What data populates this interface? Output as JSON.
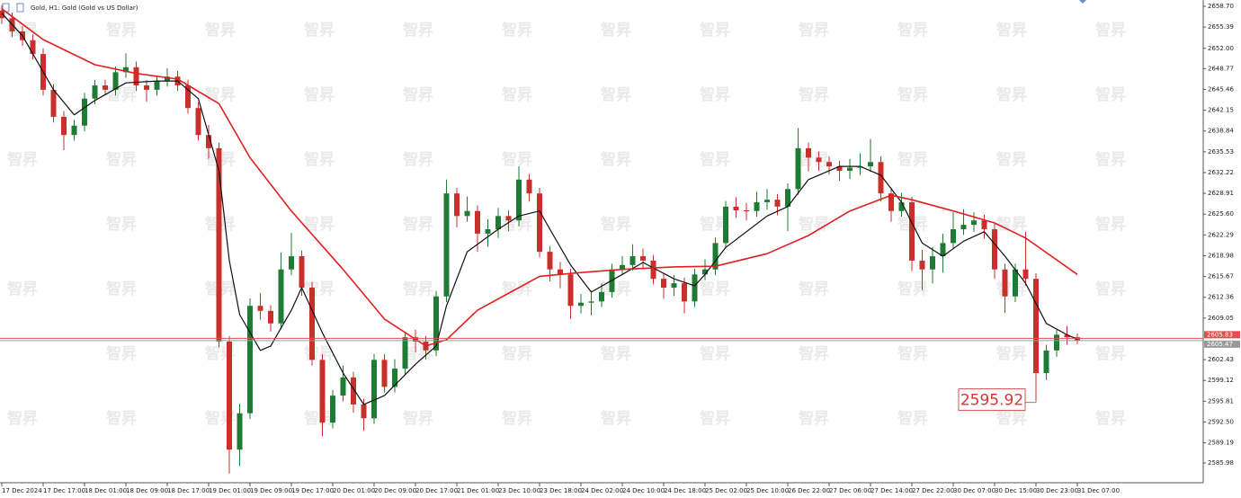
{
  "chart_data": {
    "type": "candlestick",
    "title": "Gold, H1: Gold (Gold vs US Dollar)",
    "watermark": "智昇",
    "up_color": "#1e7b34",
    "down_color": "#c9302c",
    "ylim": [
      2583.12,
      2659.7
    ],
    "yticks": [
      {
        "value": 2658.7,
        "label": "2658.70"
      },
      2655.39,
      {
        "value": 2652.0,
        "label": "2652.00"
      },
      2648.77,
      2645.46,
      2642.15,
      2638.84,
      2635.53,
      2632.22,
      2628.91,
      {
        "value": 2625.6,
        "label": "2625.60"
      },
      2622.29,
      2618.98,
      2615.67,
      2612.36,
      2609.05,
      2602.43,
      2599.12,
      2595.81,
      {
        "value": 2592.5,
        "label": "2592.50"
      },
      2589.19,
      2585.98
    ],
    "categories": [
      "17 Dec 2024",
      null,
      null,
      null,
      "17 Dec 17:00",
      null,
      null,
      null,
      "18 Dec 01:00",
      null,
      null,
      null,
      "18 Dec 09:00",
      null,
      null,
      null,
      "18 Dec 17:00",
      null,
      null,
      null,
      "19 Dec 01:00",
      null,
      null,
      null,
      "19 Dec 09:00",
      null,
      null,
      null,
      "19 Dec 17:00",
      null,
      null,
      null,
      "20 Dec 01:00",
      null,
      null,
      null,
      "20 Dec 09:00",
      null,
      null,
      null,
      "20 Dec 17:00",
      null,
      null,
      null,
      "21 Dec 01:00",
      null,
      null,
      null,
      "23 Dec 10:00",
      null,
      null,
      null,
      "23 Dec 18:00",
      null,
      null,
      null,
      "24 Dec 02:00",
      null,
      null,
      null,
      "24 Dec 10:00",
      null,
      null,
      null,
      "24 Dec 18:00",
      null,
      null,
      null,
      "25 Dec 02:00",
      null,
      null,
      null,
      "25 Dec 10:00",
      null,
      null,
      null,
      "26 Dec 22:00",
      null,
      null,
      null,
      "27 Dec 06:00",
      null,
      null,
      null,
      "27 Dec 14:00",
      null,
      null,
      null,
      "27 Dec 22:00",
      null,
      null,
      null,
      "30 Dec 07:00",
      null,
      null,
      null,
      "30 Dec 15:00",
      null,
      null,
      null,
      "30 Dec 23:00",
      null,
      null,
      null,
      "31 Dec 07:00"
    ],
    "open": [
      2658.0,
      2656.8,
      2654.7,
      2653.3,
      2651.1,
      2645.4,
      2641.1,
      2638.2,
      2639.7,
      2644.0,
      2646.1,
      2645.4,
      2648.2,
      2649.0,
      2646.1,
      2645.4,
      2646.8,
      2647.5,
      2646.1,
      2642.5,
      2638.2,
      2636.1,
      2605.3,
      2588.1,
      2593.9,
      2611.0,
      2610.2,
      2608.2,
      2616.8,
      2618.9,
      2613.9,
      2602.4,
      2592.4,
      2596.7,
      2599.6,
      2595.3,
      2593.1,
      2602.4,
      2598.1,
      2601.0,
      2606.0,
      2605.3,
      2603.9,
      2612.5,
      2628.9,
      2625.3,
      2626.1,
      2622.5,
      2623.2,
      2625.3,
      2624.6,
      2631.1,
      2628.9,
      2619.6,
      2616.8,
      2616.0,
      2611.0,
      2611.5,
      2611.7,
      2613.2,
      2616.8,
      2617.5,
      2618.9,
      2618.2,
      2615.3,
      2613.9,
      2614.6,
      2611.7,
      2616.0,
      2616.8,
      2621.0,
      2626.8,
      2626.2,
      2626.1,
      2627.5,
      2627.9,
      2626.8,
      2629.6,
      2636.1,
      2634.6,
      2633.9,
      2633.2,
      2632.5,
      2633.0,
      2633.2,
      2633.9,
      2628.9,
      2626.1,
      2627.5,
      2618.2,
      2616.8,
      2618.9,
      2621.0,
      2623.2,
      2623.9,
      2624.6,
      2623.2,
      2616.8,
      2612.5,
      2616.8,
      2615.3,
      2600.3,
      2603.9,
      2606.4,
      2606.0
    ],
    "high": [
      2658.9,
      2657.7,
      2655.6,
      2654.2,
      2652.0,
      2646.3,
      2642.0,
      2640.6,
      2644.9,
      2647.0,
      2647.0,
      2649.1,
      2651.2,
      2649.9,
      2647.0,
      2647.7,
      2648.8,
      2648.4,
      2647.0,
      2643.4,
      2639.8,
      2637.0,
      2606.2,
      2595.4,
      2612.2,
      2613.0,
      2611.1,
      2619.5,
      2622.6,
      2619.8,
      2614.8,
      2603.3,
      2597.6,
      2601.5,
      2600.5,
      2596.2,
      2603.3,
      2603.3,
      2602.5,
      2606.9,
      2607.2,
      2606.2,
      2613.4,
      2631.1,
      2629.8,
      2628.4,
      2627.0,
      2624.8,
      2626.6,
      2626.2,
      2633.2,
      2632.0,
      2629.8,
      2620.5,
      2618.0,
      2616.9,
      2612.9,
      2613.4,
      2614.6,
      2617.7,
      2618.9,
      2620.8,
      2620.1,
      2619.1,
      2616.2,
      2615.9,
      2615.5,
      2616.9,
      2618.4,
      2621.9,
      2627.7,
      2628.3,
      2627.4,
      2629.2,
      2629.6,
      2628.8,
      2630.5,
      2639.3,
      2637.0,
      2635.6,
      2634.8,
      2634.1,
      2634.4,
      2635.3,
      2637.6,
      2634.8,
      2629.8,
      2629.0,
      2628.4,
      2619.9,
      2620.4,
      2622.5,
      2625.9,
      2626.4,
      2625.9,
      2625.5,
      2624.1,
      2617.7,
      2617.7,
      2622.8,
      2616.2,
      2604.8,
      2607.3,
      2607.8,
      2606.6
    ],
    "low": [
      2655.9,
      2653.8,
      2652.4,
      2650.2,
      2644.5,
      2640.2,
      2635.8,
      2637.3,
      2638.8,
      2643.1,
      2644.5,
      2644.5,
      2647.3,
      2645.2,
      2643.5,
      2644.5,
      2645.9,
      2645.2,
      2641.6,
      2637.3,
      2634.4,
      2604.4,
      2584.3,
      2585.5,
      2593.0,
      2608.8,
      2606.9,
      2607.3,
      2615.9,
      2612.6,
      2601.5,
      2590.2,
      2591.5,
      2595.8,
      2594.0,
      2591.1,
      2592.2,
      2597.2,
      2597.2,
      2600.1,
      2603.6,
      2602.4,
      2603.0,
      2611.6,
      2623.5,
      2624.4,
      2619.6,
      2620.4,
      2621.8,
      2622.9,
      2623.7,
      2627.6,
      2618.7,
      2614.9,
      2613.8,
      2608.9,
      2609.8,
      2609.5,
      2610.8,
      2612.3,
      2615.9,
      2616.6,
      2616.9,
      2614.4,
      2612.1,
      2612.6,
      2609.8,
      2610.8,
      2615.1,
      2615.9,
      2620.1,
      2625.0,
      2624.6,
      2625.2,
      2626.3,
      2625.4,
      2622.9,
      2628.7,
      2632.4,
      2632.5,
      2631.9,
      2630.9,
      2631.2,
      2631.8,
      2632.3,
      2627.6,
      2624.4,
      2625.2,
      2616.5,
      2613.5,
      2614.6,
      2616.3,
      2620.1,
      2622.3,
      2622.8,
      2621.7,
      2615.3,
      2609.9,
      2611.6,
      2614.2,
      2595.92,
      2599.2,
      2602.9,
      2604.8,
      2604.9
    ],
    "close": [
      2656.8,
      2654.7,
      2653.3,
      2651.1,
      2645.4,
      2641.1,
      2638.2,
      2639.7,
      2644.0,
      2646.1,
      2645.4,
      2648.2,
      2649.0,
      2646.1,
      2645.4,
      2646.8,
      2647.5,
      2646.1,
      2642.5,
      2638.2,
      2636.1,
      2605.3,
      2588.1,
      2593.9,
      2611.0,
      2610.2,
      2608.2,
      2616.8,
      2618.9,
      2613.9,
      2602.4,
      2592.4,
      2596.7,
      2599.6,
      2595.3,
      2593.1,
      2602.4,
      2598.1,
      2601.0,
      2606.0,
      2605.3,
      2603.9,
      2612.5,
      2628.9,
      2625.3,
      2626.1,
      2622.5,
      2623.2,
      2625.3,
      2624.6,
      2631.1,
      2628.9,
      2619.6,
      2616.8,
      2616.0,
      2611.0,
      2611.5,
      2611.7,
      2613.2,
      2616.8,
      2617.5,
      2618.9,
      2618.2,
      2615.3,
      2613.9,
      2614.6,
      2611.7,
      2616.0,
      2616.8,
      2621.0,
      2626.8,
      2626.2,
      2626.1,
      2627.5,
      2627.9,
      2626.8,
      2629.6,
      2636.1,
      2634.6,
      2633.9,
      2633.2,
      2632.5,
      2633.0,
      2633.2,
      2633.9,
      2628.9,
      2626.1,
      2627.5,
      2618.2,
      2616.8,
      2618.9,
      2621.0,
      2623.2,
      2623.9,
      2624.6,
      2623.2,
      2616.8,
      2612.5,
      2616.8,
      2615.3,
      2600.3,
      2603.9,
      2606.4,
      2606.0,
      2605.47
    ],
    "lines": [
      {
        "color": "#111111",
        "x": [
          0,
          2,
          5,
          7,
          9,
          12,
          15,
          17,
          19,
          21,
          22,
          23,
          25,
          26,
          28,
          29,
          31,
          33,
          35,
          37,
          40,
          42,
          43,
          45,
          48,
          50,
          52,
          53,
          55,
          57,
          60,
          62,
          65,
          67,
          68,
          70,
          74,
          76,
          78,
          81,
          83,
          85,
          87,
          89,
          91,
          93,
          95,
          97,
          99,
          101,
          103,
          104
        ],
        "values": [
          2657.6,
          2654.0,
          2645.4,
          2641.4,
          2643.7,
          2646.5,
          2646.8,
          2646.8,
          2644.0,
          2632.5,
          2618.2,
          2609.6,
          2603.9,
          2604.6,
          2610.3,
          2613.9,
          2606.7,
          2600.3,
          2595.3,
          2596.7,
          2601.7,
          2604.6,
          2611.0,
          2619.6,
          2623.2,
          2625.3,
          2626.1,
          2623.2,
          2617.5,
          2613.2,
          2616.0,
          2617.9,
          2615.3,
          2614.2,
          2616.0,
          2620.3,
          2625.3,
          2626.8,
          2631.1,
          2633.2,
          2633.2,
          2631.8,
          2627.5,
          2621.0,
          2618.9,
          2621.3,
          2622.8,
          2618.9,
          2614.6,
          2608.2,
          2606.4,
          2605.7
        ]
      },
      {
        "color": "#e02020",
        "x": [
          0,
          4,
          9,
          13,
          17,
          21,
          24,
          28,
          33,
          37,
          41,
          43,
          46,
          50,
          52,
          56,
          60,
          65,
          69,
          74,
          78,
          82,
          86,
          88,
          92,
          96,
          99,
          104
        ],
        "values": [
          2658.3,
          2653.4,
          2649.4,
          2648.0,
          2647.1,
          2643.2,
          2634.6,
          2626.1,
          2616.8,
          2608.9,
          2604.6,
          2605.6,
          2610.3,
          2613.9,
          2615.7,
          2616.3,
          2616.8,
          2617.2,
          2617.3,
          2619.3,
          2622.2,
          2626.1,
          2628.6,
          2627.9,
          2626.1,
          2624.2,
          2621.8,
          2616.0
        ]
      }
    ],
    "price_lines": [
      {
        "value": 2605.83,
        "label": "2605.83",
        "color": "#e05050"
      },
      {
        "value": 2605.47,
        "label": "2605.47",
        "color": "#9a9a9a"
      }
    ]
  }
}
